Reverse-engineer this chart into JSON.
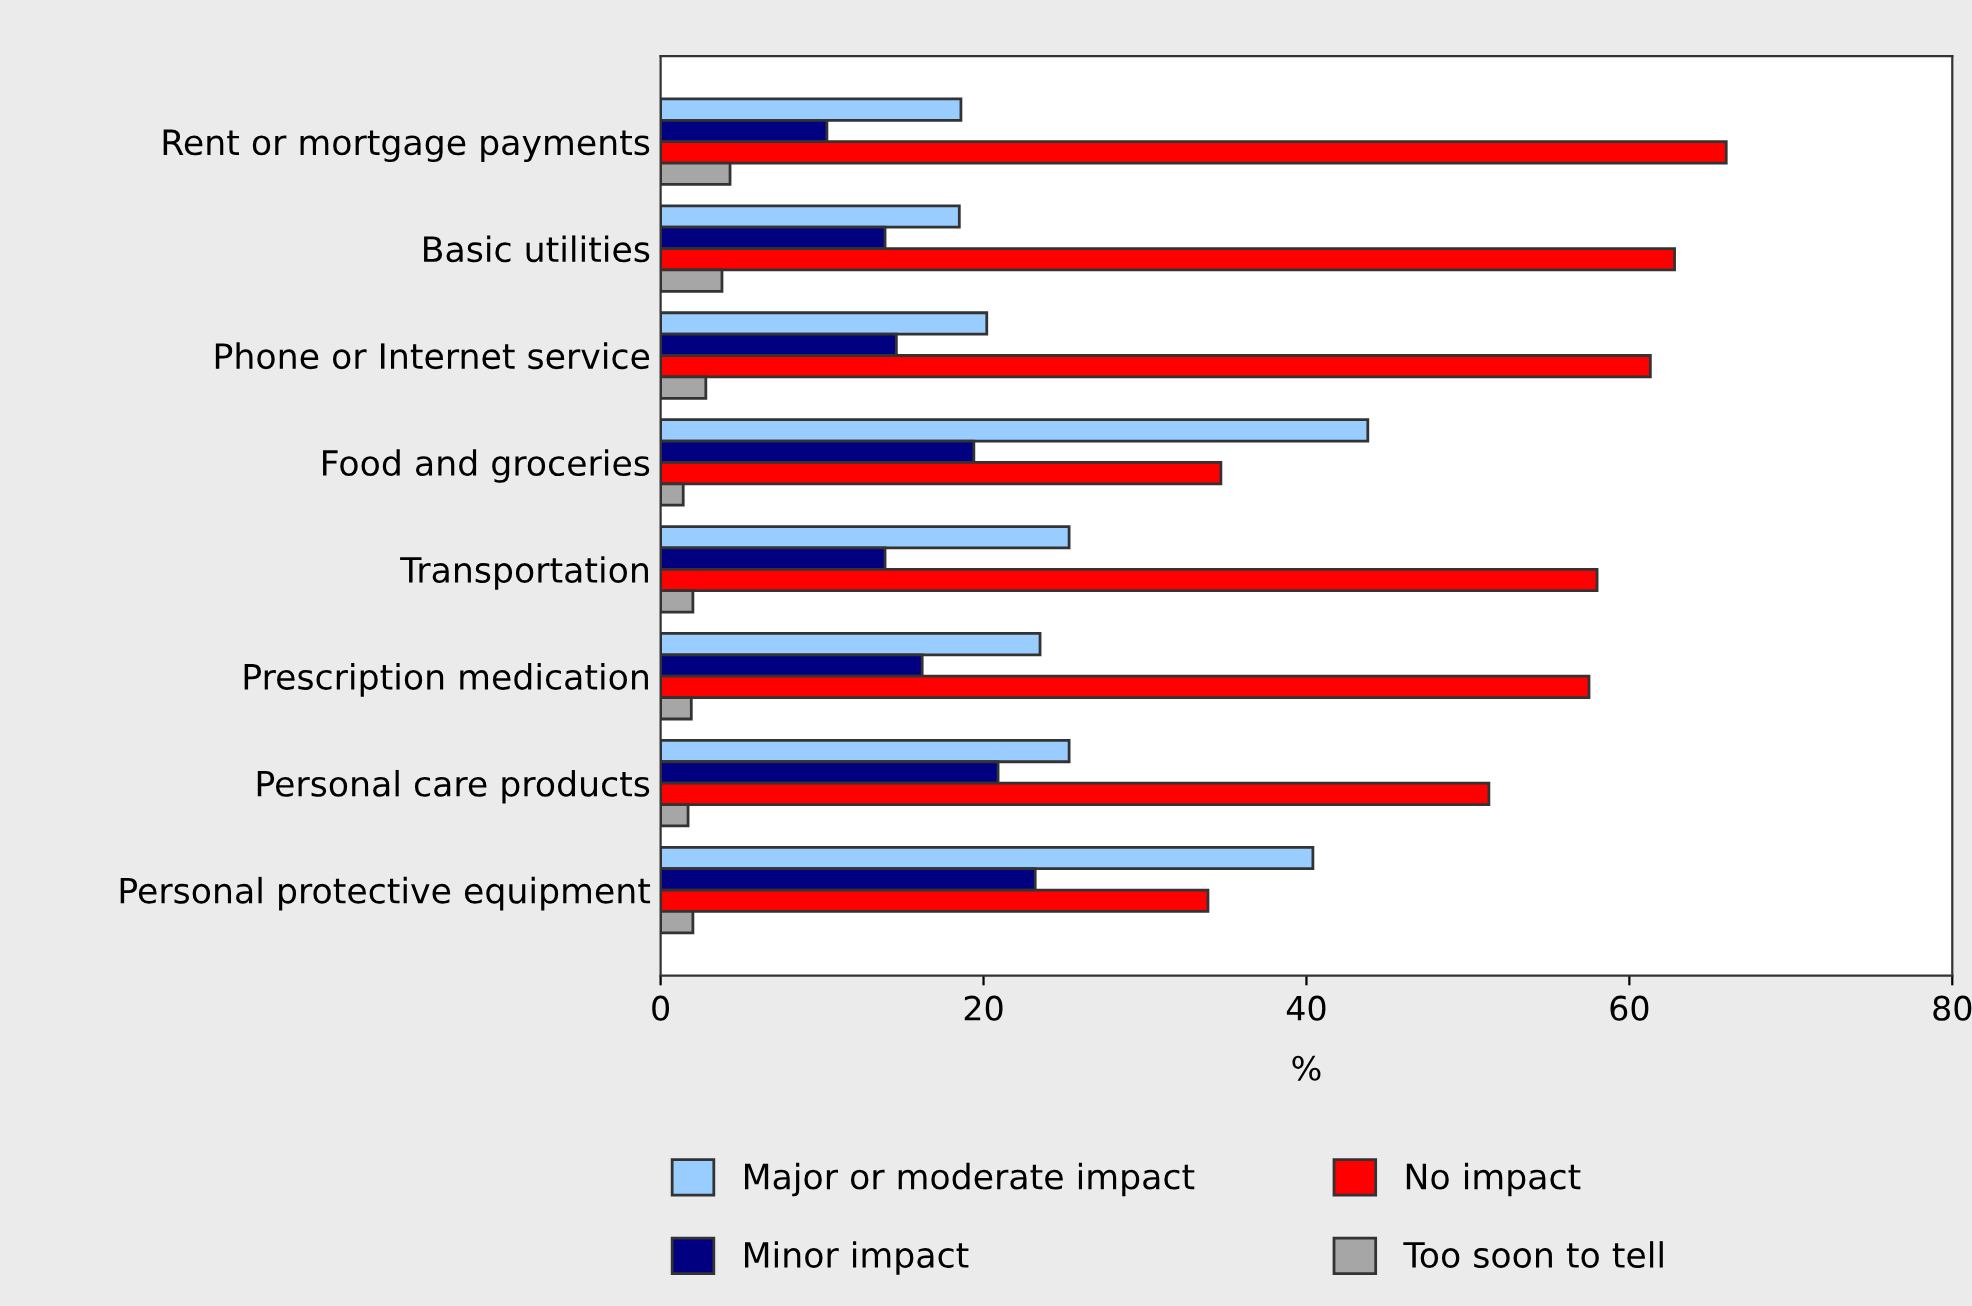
{
  "chart_data": {
    "type": "bar",
    "orientation": "horizontal",
    "xlabel": "%",
    "categories": [
      "Rent or mortgage payments",
      "Basic utilities",
      "Phone or Internet service",
      "Food and groceries",
      "Transportation",
      "Prescription medication",
      "Personal care products",
      "Personal protective equipment"
    ],
    "series": [
      {
        "name": "Major or moderate impact",
        "color": "#99ccff",
        "values": [
          18.6,
          18.5,
          20.2,
          43.8,
          25.3,
          23.5,
          25.3,
          40.4
        ]
      },
      {
        "name": "Minor impact",
        "color": "#000080",
        "values": [
          10.3,
          13.9,
          14.6,
          19.4,
          13.9,
          16.2,
          20.9,
          23.2
        ]
      },
      {
        "name": "No impact",
        "color": "#ff0000",
        "values": [
          66.0,
          62.8,
          61.3,
          34.7,
          58.0,
          57.5,
          51.3,
          33.9
        ]
      },
      {
        "name": "Too soon to tell",
        "color": "#a6a6a6",
        "values": [
          4.3,
          3.8,
          2.8,
          1.4,
          2.0,
          1.9,
          1.7,
          2.0
        ]
      }
    ],
    "xlim": [
      0,
      80
    ],
    "xticks": [
      0,
      20,
      40,
      60,
      80
    ],
    "grid": false,
    "legend": "bottom"
  }
}
